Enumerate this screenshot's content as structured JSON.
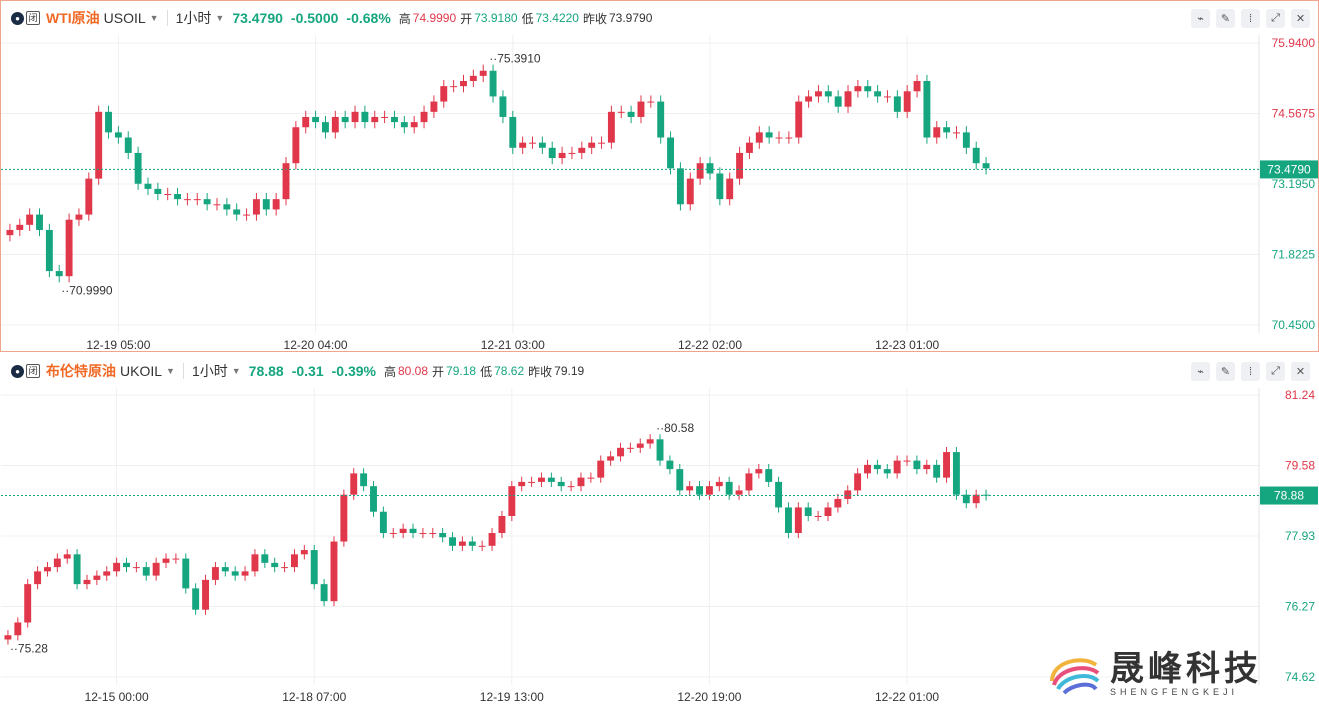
{
  "panels": [
    {
      "title": "WTI原油",
      "symbol": "USOIL",
      "timeframe": "1小时",
      "last": "73.4790",
      "change": "-0.5000",
      "change_pct": "-0.68%",
      "high_label": "高",
      "high": "74.9990",
      "open_label": "开",
      "open": "73.9180",
      "low_label": "低",
      "low": "73.4220",
      "prev_label": "昨收",
      "prev": "73.9790",
      "y_ticks": [
        "75.9400",
        "74.5675",
        "73.1950",
        "71.8225",
        "70.4500"
      ],
      "x_ticks": [
        "12-19 05:00",
        "12-20 04:00",
        "12-21 03:00",
        "12-22 02:00",
        "12-23 01:00"
      ],
      "current_tag": "73.4790",
      "max_annot": "75.3910",
      "min_annot": "70.9990"
    },
    {
      "title": "布伦特原油",
      "symbol": "UKOIL",
      "timeframe": "1小时",
      "last": "78.88",
      "change": "-0.31",
      "change_pct": "-0.39%",
      "high_label": "高",
      "high": "80.08",
      "open_label": "开",
      "open": "79.18",
      "low_label": "低",
      "low": "78.62",
      "prev_label": "昨收",
      "prev": "79.19",
      "y_ticks": [
        "81.24",
        "79.58",
        "77.93",
        "76.27",
        "74.62"
      ],
      "x_ticks": [
        "12-15 00:00",
        "12-18 07:00",
        "12-19 13:00",
        "12-20 19:00",
        "12-22 01:00"
      ],
      "current_tag": "78.88",
      "max_annot": "80.58",
      "min_annot": "75.28"
    }
  ],
  "badge_text": "闭",
  "logo": {
    "cn": "晟峰科技",
    "en": "SHENGFENGKEJI"
  },
  "colors": {
    "up": "#e0374a",
    "down": "#15a57f",
    "accent": "#f06a25"
  },
  "chart_data": [
    {
      "type": "candlestick",
      "title": "WTI原油 USOIL 1小时",
      "ylim": [
        70.45,
        75.94
      ],
      "series": [
        {
          "name": "USOIL",
          "close": [
            72.3,
            72.4,
            72.6,
            72.3,
            71.5,
            71.4,
            72.5,
            72.6,
            73.3,
            74.6,
            74.2,
            74.1,
            73.8,
            73.2,
            73.1,
            73.0,
            73.0,
            72.9,
            72.9,
            72.9,
            72.8,
            72.8,
            72.7,
            72.6,
            72.6,
            72.9,
            72.7,
            72.9,
            73.6,
            74.3,
            74.5,
            74.4,
            74.2,
            74.5,
            74.4,
            74.6,
            74.4,
            74.5,
            74.5,
            74.4,
            74.3,
            74.4,
            74.6,
            74.8,
            75.1,
            75.1,
            75.2,
            75.3,
            75.4,
            74.9,
            74.5,
            73.9,
            74.0,
            74.0,
            73.9,
            73.7,
            73.8,
            73.8,
            73.9,
            74.0,
            74.0,
            74.6,
            74.6,
            74.5,
            74.8,
            74.8,
            74.1,
            73.5,
            72.8,
            73.3,
            73.6,
            73.4,
            72.9,
            73.3,
            73.8,
            74.0,
            74.2,
            74.1,
            74.1,
            74.1,
            74.8,
            74.9,
            75.0,
            74.9,
            74.7,
            75.0,
            75.1,
            75.0,
            74.9,
            74.9,
            74.6,
            75.0,
            75.2,
            74.1,
            74.3,
            74.2,
            74.2,
            73.9,
            73.6,
            73.5
          ]
        }
      ],
      "annotations": [
        {
          "label": "75.3910",
          "type": "max"
        },
        {
          "label": "70.9990",
          "type": "min"
        }
      ],
      "last": 73.479
    },
    {
      "type": "candlestick",
      "title": "布伦特原油 UKOIL 1小时",
      "ylim": [
        74.62,
        81.24
      ],
      "series": [
        {
          "name": "UKOIL",
          "close": [
            75.6,
            75.9,
            76.8,
            77.1,
            77.2,
            77.4,
            77.5,
            76.8,
            76.9,
            77.0,
            77.1,
            77.3,
            77.2,
            77.2,
            77.0,
            77.3,
            77.4,
            77.4,
            76.7,
            76.2,
            76.9,
            77.2,
            77.1,
            77.0,
            77.1,
            77.5,
            77.3,
            77.2,
            77.2,
            77.5,
            77.6,
            76.8,
            76.4,
            77.8,
            78.9,
            79.4,
            79.1,
            78.5,
            78.0,
            78.0,
            78.1,
            78.0,
            78.0,
            78.0,
            77.9,
            77.7,
            77.8,
            77.7,
            77.7,
            78.0,
            78.4,
            79.1,
            79.2,
            79.2,
            79.3,
            79.2,
            79.1,
            79.1,
            79.3,
            79.3,
            79.7,
            79.8,
            80.0,
            80.0,
            80.1,
            80.2,
            79.7,
            79.5,
            79.0,
            79.1,
            78.9,
            79.1,
            79.2,
            78.9,
            79.0,
            79.4,
            79.5,
            79.2,
            78.6,
            78.0,
            78.6,
            78.4,
            78.4,
            78.6,
            78.8,
            79.0,
            79.4,
            79.6,
            79.5,
            79.4,
            79.7,
            79.7,
            79.5,
            79.6,
            79.3,
            79.9,
            78.9,
            78.7,
            78.9,
            78.88
          ]
        }
      ],
      "annotations": [
        {
          "label": "80.58",
          "type": "max"
        },
        {
          "label": "75.28",
          "type": "min"
        }
      ],
      "last": 78.88
    }
  ]
}
